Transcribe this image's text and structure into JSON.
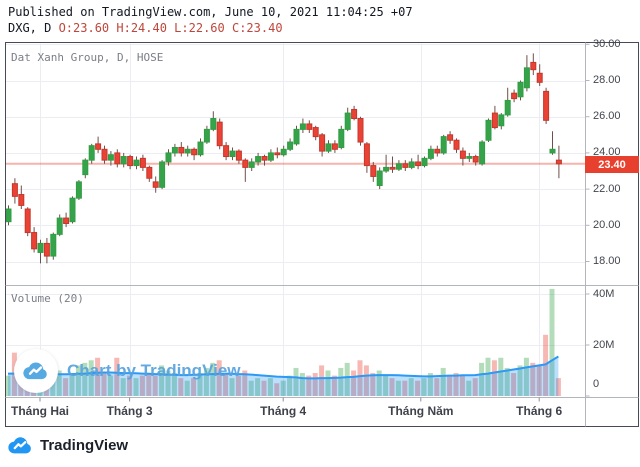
{
  "header": {
    "published": "Published on TradingView.com, June 10, 2021 11:04:25 +07",
    "symbol": "DXG, D ",
    "ohlc": {
      "open": "O:23.60 ",
      "high": "H:24.40 ",
      "low": "L:22.60 ",
      "close": "C:23.40"
    }
  },
  "price_pane": {
    "legend": "Dat Xanh Group, D, HOSE",
    "last_price": "23.40"
  },
  "volume_pane": {
    "legend": "Volume (20)"
  },
  "watermark": {
    "text": "Chart by TradingView"
  },
  "footer": {
    "brand": "TradingView"
  },
  "colors": {
    "up": "#2f9e43",
    "up_fill": "#36a34a",
    "down": "#c4372c",
    "down_fill": "#ea4335",
    "wick": "#6f4f4a",
    "grid": "#ebedf2",
    "frame_dark": "#474b55",
    "frame_mid": "#b2b5be",
    "price_line": "rgba(234,67,53,0.40)",
    "badge": "#e8402f",
    "vol_up": "rgba(54,163,74,0.38)",
    "vol_down": "rgba(234,67,53,0.38)",
    "ma_line": "#2b99f5",
    "ma_fill": "rgba(33,150,243,0.30)",
    "brand_blue": "#2196f3",
    "wm_blue": "#57a9e2"
  },
  "chart_data": {
    "type": "candlestick",
    "title": "Dat Xanh Group (DXG), Daily, HOSE — with Volume(20) pane",
    "symbol": "DXG",
    "exchange": "HOSE",
    "interval": "D",
    "last_ohlc": {
      "o": 23.6,
      "h": 24.4,
      "l": 22.6,
      "c": 23.4
    },
    "price_axis": {
      "ticks": [
        30,
        28,
        26,
        24,
        22,
        20,
        18
      ],
      "tick_labels": [
        "30.00",
        "28.00",
        "26.00",
        "24.00",
        "22.00",
        "20.00",
        "18.00"
      ],
      "last_price": 23.4,
      "min": 16.7,
      "max": 30.1
    },
    "volume_axis": {
      "ticks_m": [
        40,
        20,
        0
      ],
      "tick_labels": [
        "40M",
        "20M",
        "0"
      ]
    },
    "time_axis": {
      "labels": [
        "Tháng Hai",
        "Tháng 3",
        "Tháng 4",
        "Tháng Năm",
        "Tháng 6"
      ],
      "tick_candle_indices": [
        5,
        19,
        43,
        64.5,
        83
      ]
    },
    "ohlc": [
      [
        20.2,
        21.1,
        20.0,
        20.9
      ],
      [
        22.3,
        22.6,
        21.2,
        21.6
      ],
      [
        21.7,
        22.2,
        20.9,
        21.1
      ],
      [
        20.9,
        21.0,
        19.4,
        19.6
      ],
      [
        19.6,
        19.9,
        18.5,
        18.7
      ],
      [
        18.5,
        19.2,
        17.9,
        19.0
      ],
      [
        19.0,
        19.3,
        17.9,
        18.3
      ],
      [
        18.3,
        19.6,
        18.1,
        19.5
      ],
      [
        19.5,
        20.6,
        19.4,
        20.4
      ],
      [
        20.4,
        20.7,
        19.9,
        20.1
      ],
      [
        20.2,
        21.6,
        20.1,
        21.5
      ],
      [
        21.5,
        22.5,
        21.4,
        22.4
      ],
      [
        22.8,
        23.7,
        22.6,
        23.6
      ],
      [
        23.6,
        24.5,
        23.4,
        24.4
      ],
      [
        24.5,
        24.9,
        24.0,
        24.2
      ],
      [
        24.2,
        24.4,
        23.4,
        23.6
      ],
      [
        23.6,
        24.1,
        23.3,
        23.9
      ],
      [
        24.0,
        24.2,
        23.2,
        23.4
      ],
      [
        23.4,
        24.0,
        23.2,
        23.8
      ],
      [
        23.8,
        23.9,
        23.1,
        23.3
      ],
      [
        23.3,
        23.8,
        23.1,
        23.6
      ],
      [
        23.7,
        23.9,
        23.0,
        23.2
      ],
      [
        23.2,
        23.3,
        22.4,
        22.6
      ],
      [
        22.4,
        22.7,
        21.8,
        22.1
      ],
      [
        22.1,
        23.6,
        22.0,
        23.5
      ],
      [
        23.5,
        24.2,
        23.3,
        24.0
      ],
      [
        24.0,
        24.5,
        23.8,
        24.3
      ],
      [
        24.3,
        24.6,
        23.8,
        24.0
      ],
      [
        24.0,
        24.4,
        23.8,
        24.2
      ],
      [
        24.2,
        24.3,
        23.6,
        23.9
      ],
      [
        23.9,
        24.8,
        23.8,
        24.6
      ],
      [
        24.6,
        25.5,
        24.5,
        25.3
      ],
      [
        25.3,
        26.3,
        25.2,
        25.9
      ],
      [
        25.7,
        25.9,
        24.2,
        24.4
      ],
      [
        24.4,
        24.6,
        23.6,
        23.8
      ],
      [
        23.8,
        24.3,
        23.6,
        24.1
      ],
      [
        24.1,
        24.2,
        23.4,
        23.6
      ],
      [
        23.6,
        23.7,
        22.4,
        23.2
      ],
      [
        23.2,
        23.7,
        23.0,
        23.5
      ],
      [
        23.5,
        24.0,
        23.3,
        23.8
      ],
      [
        23.8,
        23.9,
        23.3,
        23.6
      ],
      [
        23.6,
        24.2,
        23.5,
        24.0
      ],
      [
        24.0,
        24.3,
        23.7,
        23.9
      ],
      [
        23.9,
        24.4,
        23.8,
        24.2
      ],
      [
        24.2,
        24.8,
        24.1,
        24.6
      ],
      [
        24.5,
        25.5,
        24.4,
        25.3
      ],
      [
        25.3,
        25.9,
        25.1,
        25.6
      ],
      [
        25.6,
        25.8,
        25.1,
        25.3
      ],
      [
        25.4,
        25.5,
        24.7,
        24.9
      ],
      [
        25.0,
        25.1,
        23.8,
        24.1
      ],
      [
        24.1,
        24.7,
        24.0,
        24.5
      ],
      [
        24.5,
        24.7,
        24.0,
        24.2
      ],
      [
        24.3,
        25.5,
        24.2,
        25.3
      ],
      [
        25.3,
        26.5,
        25.2,
        26.2
      ],
      [
        26.4,
        26.6,
        25.8,
        25.9
      ],
      [
        25.9,
        26.0,
        24.4,
        24.6
      ],
      [
        24.5,
        24.6,
        22.9,
        23.3
      ],
      [
        23.3,
        23.5,
        22.4,
        22.7
      ],
      [
        22.2,
        23.2,
        22.0,
        23.0
      ],
      [
        23.0,
        23.9,
        22.9,
        23.2
      ],
      [
        23.2,
        23.8,
        22.9,
        23.1
      ],
      [
        23.1,
        23.6,
        23.0,
        23.4
      ],
      [
        23.4,
        23.6,
        23.0,
        23.2
      ],
      [
        23.2,
        23.7,
        23.1,
        23.5
      ],
      [
        23.5,
        23.9,
        23.1,
        23.3
      ],
      [
        23.3,
        23.8,
        23.2,
        23.7
      ],
      [
        23.7,
        24.4,
        23.6,
        24.2
      ],
      [
        24.2,
        24.4,
        23.8,
        24.0
      ],
      [
        24.0,
        25.0,
        23.9,
        24.9
      ],
      [
        25.0,
        25.2,
        24.5,
        24.7
      ],
      [
        24.7,
        24.8,
        24.0,
        24.2
      ],
      [
        24.1,
        24.3,
        23.3,
        23.7
      ],
      [
        23.7,
        24.0,
        23.5,
        23.8
      ],
      [
        23.8,
        23.9,
        23.3,
        23.5
      ],
      [
        23.4,
        24.7,
        23.3,
        24.6
      ],
      [
        24.7,
        25.9,
        24.6,
        25.8
      ],
      [
        26.2,
        26.6,
        25.3,
        25.4
      ],
      [
        25.5,
        26.2,
        25.3,
        26.1
      ],
      [
        26.1,
        27.6,
        26.0,
        26.9
      ],
      [
        27.3,
        27.5,
        26.8,
        27.0
      ],
      [
        27.1,
        28.0,
        26.9,
        27.9
      ],
      [
        27.6,
        29.4,
        27.4,
        28.7
      ],
      [
        29.0,
        29.5,
        28.3,
        28.6
      ],
      [
        28.4,
        28.9,
        27.7,
        27.9
      ],
      [
        27.4,
        27.6,
        25.6,
        25.8
      ],
      [
        24.0,
        25.2,
        23.9,
        24.2
      ],
      [
        23.6,
        24.4,
        22.6,
        23.4
      ]
    ],
    "volumes_m": [
      8,
      17,
      12,
      10,
      9,
      8,
      7,
      11,
      10,
      7,
      9,
      12,
      13,
      14,
      15,
      9,
      8,
      15,
      7,
      8,
      7,
      8,
      9,
      8,
      12,
      10,
      9,
      7,
      6,
      7,
      9,
      11,
      13,
      14,
      9,
      7,
      8,
      10,
      6,
      7,
      6,
      7,
      5,
      6,
      8,
      11,
      9,
      8,
      9,
      12,
      10,
      8,
      11,
      13,
      10,
      14,
      12,
      9,
      10,
      8,
      7,
      6,
      6,
      7,
      6,
      7,
      9,
      7,
      11,
      8,
      9,
      8,
      6,
      7,
      13,
      15,
      14,
      15,
      11,
      9,
      12,
      15,
      13,
      12,
      24,
      42,
      7
    ],
    "volume_ma20_m": [
      8.8,
      8.8,
      8.7,
      8.7,
      8.6,
      8.6,
      8.5,
      8.5,
      8.5,
      8.5,
      8.6,
      8.7,
      8.8,
      9.0,
      9.1,
      9.2,
      9.2,
      9.1,
      9.0,
      9.0,
      8.9,
      8.8,
      8.7,
      8.6,
      8.5,
      8.4,
      8.3,
      8.2,
      8.2,
      8.3,
      8.4,
      8.5,
      8.6,
      8.7,
      8.8,
      8.7,
      8.6,
      8.5,
      8.4,
      8.2,
      8.0,
      7.8,
      7.6,
      7.5,
      7.4,
      7.3,
      7.0,
      6.9,
      6.9,
      7.0,
      7.0,
      7.1,
      7.2,
      7.4,
      7.5,
      7.8,
      8.0,
      8.1,
      8.2,
      8.2,
      8.2,
      8.1,
      8.0,
      7.9,
      7.8,
      7.7,
      7.7,
      7.8,
      7.9,
      8.0,
      8.0,
      8.1,
      8.1,
      8.2,
      8.5,
      8.8,
      9.2,
      9.6,
      10.0,
      10.4,
      10.8,
      11.2,
      11.6,
      12.0,
      12.4,
      14.0,
      15.5
    ]
  }
}
